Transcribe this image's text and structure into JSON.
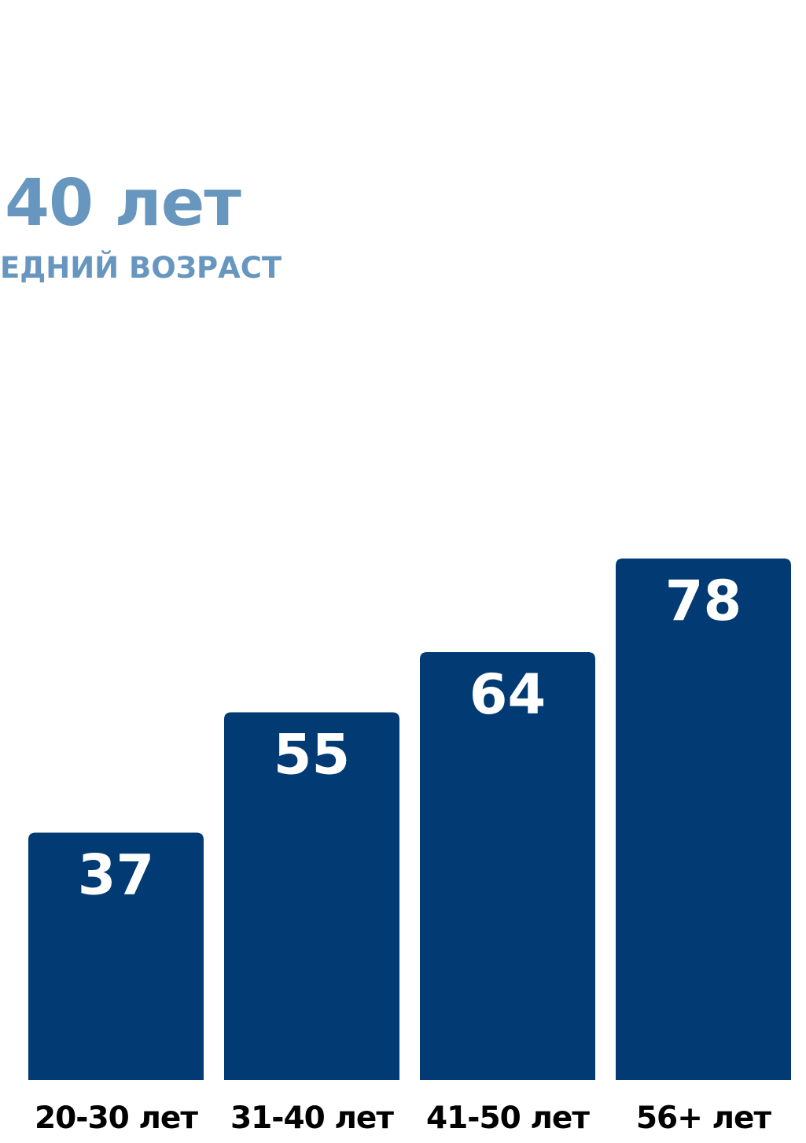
{
  "annotation": {
    "value": "40 лет",
    "label": "ЕДНИЙ ВОЗРАСТ"
  },
  "colors": {
    "bar": "#023a73",
    "bar_label": "#ffffff",
    "annotation": "#6796bf",
    "axis_label": "#000000"
  },
  "chart_data": {
    "type": "bar",
    "title": "",
    "xlabel": "",
    "ylabel": "",
    "categories": [
      "20-30 лет",
      "31-40 лет",
      "41-50 лет",
      "56+ лет"
    ],
    "values": [
      37,
      55,
      64,
      78
    ],
    "ylim": [
      0,
      80
    ],
    "grid": false,
    "legend": "none"
  }
}
